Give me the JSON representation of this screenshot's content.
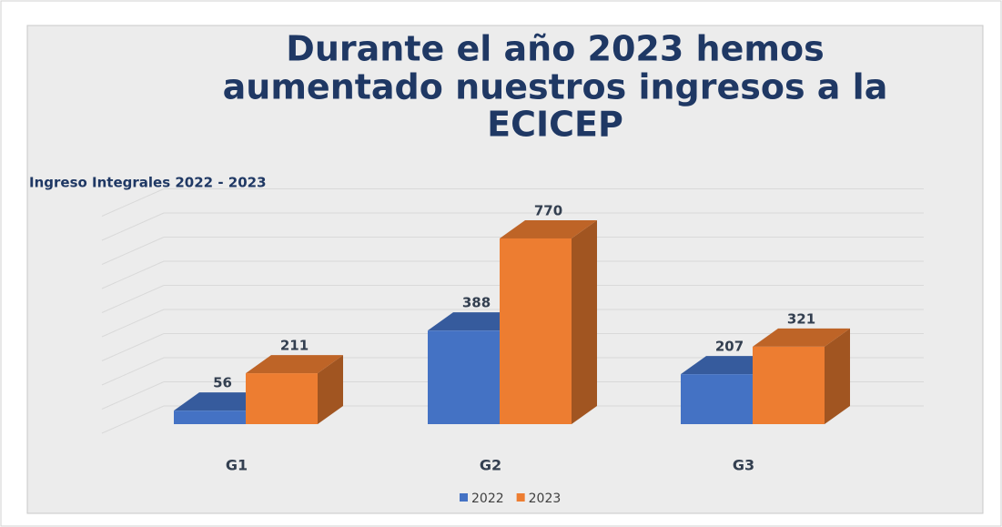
{
  "chart_data": {
    "type": "bar3d",
    "title": [
      "Durante el año 2023 hemos",
      "aumentado nuestros ingresos a la",
      "ECICEP"
    ],
    "subtitle": "Ingreso Integrales 2022 - 2023",
    "categories": [
      "G1",
      "G2",
      "G3"
    ],
    "series": [
      {
        "name": "2022",
        "color": "#4472c4",
        "values": [
          56,
          388,
          207
        ]
      },
      {
        "name": "2023",
        "color": "#ed7d31",
        "values": [
          211,
          770,
          321
        ]
      }
    ],
    "ylim": [
      0,
      900
    ],
    "yticks": [
      0,
      100,
      200,
      300,
      400,
      500,
      600,
      700,
      800,
      900
    ],
    "grid": true,
    "legend": "bottom"
  }
}
